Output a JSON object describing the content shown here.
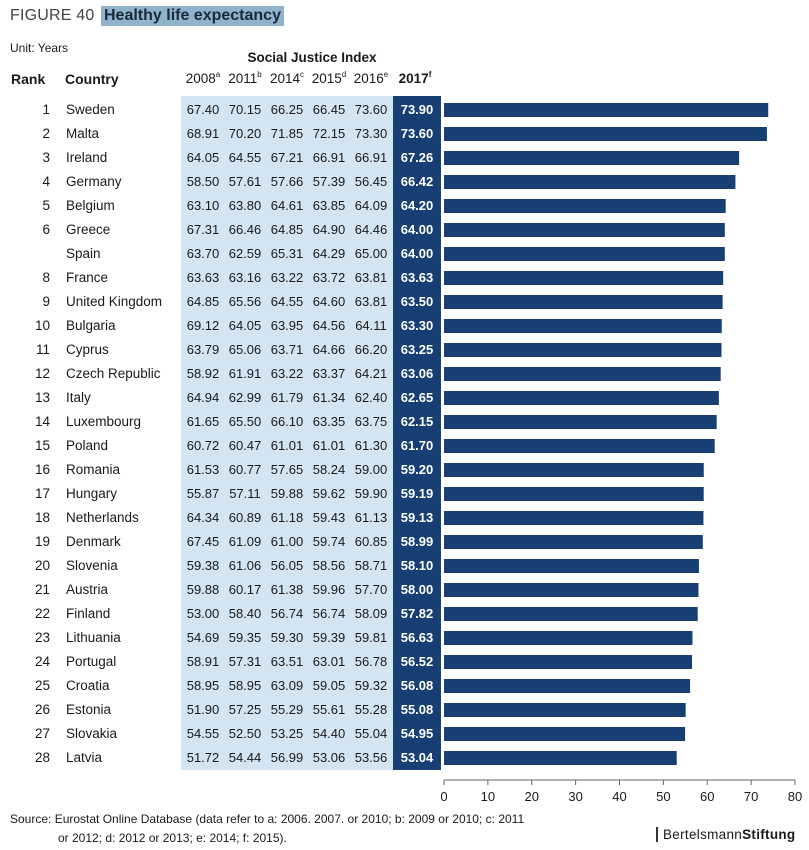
{
  "figure": {
    "label": "FIGURE 40",
    "title": "Healthy life expectancy",
    "unit": "Unit: Years",
    "group_header": "Social Justice Index",
    "rank_header": "Rank",
    "country_header": "Country",
    "year_headers": [
      {
        "year": "2008",
        "sup": "a"
      },
      {
        "year": "2011",
        "sup": "b"
      },
      {
        "year": "2014",
        "sup": "c"
      },
      {
        "year": "2015",
        "sup": "d"
      },
      {
        "year": "2016",
        "sup": "e"
      },
      {
        "year": "2017",
        "sup": "f"
      }
    ]
  },
  "chart_data": {
    "type": "bar",
    "orientation": "horizontal",
    "title": "Healthy life expectancy",
    "unit": "Years",
    "xlim": [
      0,
      80
    ],
    "xticks": [
      0,
      10,
      20,
      30,
      40,
      50,
      60,
      70,
      80
    ],
    "bar_color": "#173f73",
    "rows": [
      {
        "rank": "1",
        "country": "Sweden",
        "values": [
          "67.40",
          "70.15",
          "66.25",
          "66.45",
          "73.60",
          "73.90"
        ]
      },
      {
        "rank": "2",
        "country": "Malta",
        "values": [
          "68.91",
          "70.20",
          "71.85",
          "72.15",
          "73.30",
          "73.60"
        ]
      },
      {
        "rank": "3",
        "country": "Ireland",
        "values": [
          "64.05",
          "64.55",
          "67.21",
          "66.91",
          "66.91",
          "67.26"
        ]
      },
      {
        "rank": "4",
        "country": "Germany",
        "values": [
          "58.50",
          "57.61",
          "57.66",
          "57.39",
          "56.45",
          "66.42"
        ]
      },
      {
        "rank": "5",
        "country": "Belgium",
        "values": [
          "63.10",
          "63.80",
          "64.61",
          "63.85",
          "64.09",
          "64.20"
        ]
      },
      {
        "rank": "6",
        "country": "Greece",
        "values": [
          "67.31",
          "66.46",
          "64.85",
          "64.90",
          "64.46",
          "64.00"
        ]
      },
      {
        "rank": "",
        "country": "Spain",
        "values": [
          "63.70",
          "62.59",
          "65.31",
          "64.29",
          "65.00",
          "64.00"
        ]
      },
      {
        "rank": "8",
        "country": "France",
        "values": [
          "63.63",
          "63.16",
          "63.22",
          "63.72",
          "63.81",
          "63.63"
        ]
      },
      {
        "rank": "9",
        "country": "United Kingdom",
        "values": [
          "64.85",
          "65.56",
          "64.55",
          "64.60",
          "63.81",
          "63.50"
        ]
      },
      {
        "rank": "10",
        "country": "Bulgaria",
        "values": [
          "69.12",
          "64.05",
          "63.95",
          "64.56",
          "64.11",
          "63.30"
        ]
      },
      {
        "rank": "11",
        "country": "Cyprus",
        "values": [
          "63.79",
          "65.06",
          "63.71",
          "64.66",
          "66.20",
          "63.25"
        ]
      },
      {
        "rank": "12",
        "country": "Czech Republic",
        "values": [
          "58.92",
          "61.91",
          "63.22",
          "63.37",
          "64.21",
          "63.06"
        ]
      },
      {
        "rank": "13",
        "country": "Italy",
        "values": [
          "64.94",
          "62.99",
          "61.79",
          "61.34",
          "62.40",
          "62.65"
        ]
      },
      {
        "rank": "14",
        "country": "Luxembourg",
        "values": [
          "61.65",
          "65.50",
          "66.10",
          "63.35",
          "63.75",
          "62.15"
        ]
      },
      {
        "rank": "15",
        "country": "Poland",
        "values": [
          "60.72",
          "60.47",
          "61.01",
          "61.01",
          "61.30",
          "61.70"
        ]
      },
      {
        "rank": "16",
        "country": "Romania",
        "values": [
          "61.53",
          "60.77",
          "57.65",
          "58.24",
          "59.00",
          "59.20"
        ]
      },
      {
        "rank": "17",
        "country": "Hungary",
        "values": [
          "55.87",
          "57.11",
          "59.88",
          "59.62",
          "59.90",
          "59.19"
        ]
      },
      {
        "rank": "18",
        "country": "Netherlands",
        "values": [
          "64.34",
          "60.89",
          "61.18",
          "59.43",
          "61.13",
          "59.13"
        ]
      },
      {
        "rank": "19",
        "country": "Denmark",
        "values": [
          "67.45",
          "61.09",
          "61.00",
          "59.74",
          "60.85",
          "58.99"
        ]
      },
      {
        "rank": "20",
        "country": "Slovenia",
        "values": [
          "59.38",
          "61.06",
          "56.05",
          "58.56",
          "58.71",
          "58.10"
        ]
      },
      {
        "rank": "21",
        "country": "Austria",
        "values": [
          "59.88",
          "60.17",
          "61.38",
          "59.96",
          "57.70",
          "58.00"
        ]
      },
      {
        "rank": "22",
        "country": "Finland",
        "values": [
          "53.00",
          "58.40",
          "56.74",
          "56.74",
          "58.09",
          "57.82"
        ]
      },
      {
        "rank": "23",
        "country": "Lithuania",
        "values": [
          "54.69",
          "59.35",
          "59.30",
          "59.39",
          "59.81",
          "56.63"
        ]
      },
      {
        "rank": "24",
        "country": "Portugal",
        "values": [
          "58.91",
          "57.31",
          "63.51",
          "63.01",
          "56.78",
          "56.52"
        ]
      },
      {
        "rank": "25",
        "country": "Croatia",
        "values": [
          "58.95",
          "58.95",
          "63.09",
          "59.05",
          "59.32",
          "56.08"
        ]
      },
      {
        "rank": "26",
        "country": "Estonia",
        "values": [
          "51.90",
          "57.25",
          "55.29",
          "55.61",
          "55.28",
          "55.08"
        ]
      },
      {
        "rank": "27",
        "country": "Slovakia",
        "values": [
          "54.55",
          "52.50",
          "53.25",
          "54.40",
          "55.04",
          "54.95"
        ]
      },
      {
        "rank": "28",
        "country": "Latvia",
        "values": [
          "51.72",
          "54.44",
          "56.99",
          "53.06",
          "53.56",
          "53.04"
        ]
      }
    ]
  },
  "source": {
    "line1": "Source:  Eurostat Online Database (data refer to a: 2006. 2007. or 2010; b: 2009 or 2010; c: 2011",
    "line2": "or 2012; d: 2012 or 2013; e: 2014; f: 2015)."
  },
  "logo": {
    "part1": "Bertelsmann",
    "part2": "Stiftung"
  }
}
